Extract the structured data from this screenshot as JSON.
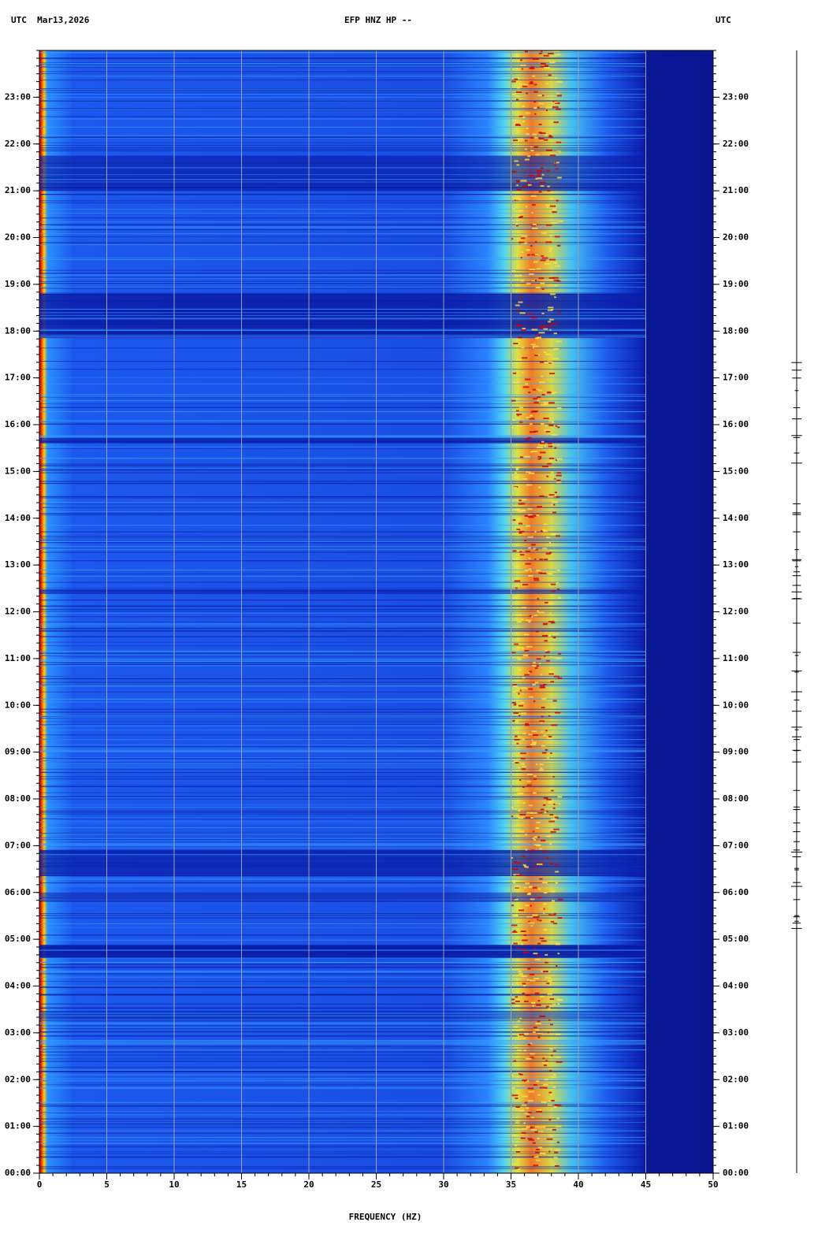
{
  "chart_data": {
    "type": "spectrogram",
    "header_left": "UTC  Mar13,2026",
    "title": "EFP HNZ HP --",
    "header_right": "UTC",
    "xlabel": "FREQUENCY (HZ)",
    "xlim": [
      0,
      50
    ],
    "xticks": [
      0,
      5,
      10,
      15,
      20,
      25,
      30,
      35,
      40,
      45,
      50
    ],
    "ylim": [
      0,
      24
    ],
    "yticks": [
      {
        "value": 0,
        "label": "00:00"
      },
      {
        "value": 1,
        "label": "01:00"
      },
      {
        "value": 2,
        "label": "02:00"
      },
      {
        "value": 3,
        "label": "03:00"
      },
      {
        "value": 4,
        "label": "04:00"
      },
      {
        "value": 5,
        "label": "05:00"
      },
      {
        "value": 6,
        "label": "06:00"
      },
      {
        "value": 7,
        "label": "07:00"
      },
      {
        "value": 8,
        "label": "08:00"
      },
      {
        "value": 9,
        "label": "09:00"
      },
      {
        "value": 10,
        "label": "10:00"
      },
      {
        "value": 11,
        "label": "11:00"
      },
      {
        "value": 12,
        "label": "12:00"
      },
      {
        "value": 13,
        "label": "13:00"
      },
      {
        "value": 14,
        "label": "14:00"
      },
      {
        "value": 15,
        "label": "15:00"
      },
      {
        "value": 16,
        "label": "16:00"
      },
      {
        "value": 17,
        "label": "17:00"
      },
      {
        "value": 18,
        "label": "18:00"
      },
      {
        "value": 19,
        "label": "19:00"
      },
      {
        "value": 20,
        "label": "20:00"
      },
      {
        "value": 21,
        "label": "21:00"
      },
      {
        "value": 22,
        "label": "22:00"
      },
      {
        "value": 23,
        "label": "23:00"
      }
    ],
    "grid": true,
    "grid_color": "#a0a0a0"
  }
}
